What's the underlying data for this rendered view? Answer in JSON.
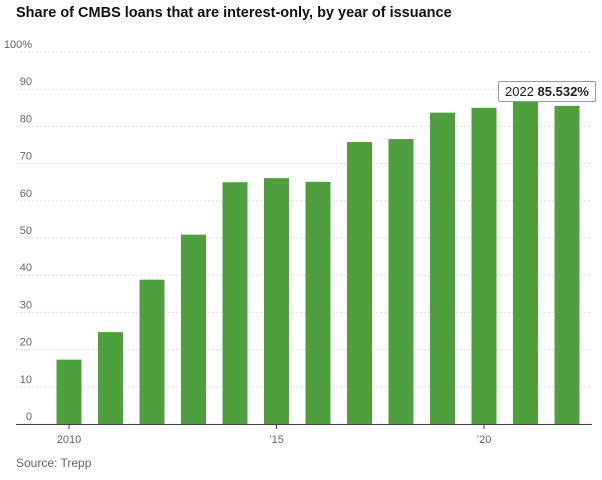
{
  "chart_data": {
    "type": "bar",
    "title": "Share of CMBS loans that are interest-only, by year of issuance",
    "categories": [
      2010,
      2011,
      2012,
      2013,
      2014,
      2015,
      2016,
      2017,
      2018,
      2019,
      2020,
      2021,
      2022
    ],
    "values": [
      17.3,
      24.7,
      38.8,
      50.9,
      65.0,
      66.1,
      65.1,
      75.8,
      76.6,
      83.7,
      85.0,
      87.4,
      85.532
    ],
    "ylim": [
      0,
      100
    ],
    "y_ticks": [
      0,
      10,
      20,
      30,
      40,
      50,
      60,
      70,
      80,
      90
    ],
    "top_tick_label": "100%",
    "x_ticks": [
      {
        "value": 2010,
        "label": "2010"
      },
      {
        "value": 2015,
        "label": "’15"
      },
      {
        "value": 2020,
        "label": "’20"
      }
    ],
    "bar_color": "#4f9f3f",
    "grid": true,
    "tooltip": {
      "year": "2022",
      "value": "85.532%"
    },
    "source": "Source: Trepp"
  }
}
